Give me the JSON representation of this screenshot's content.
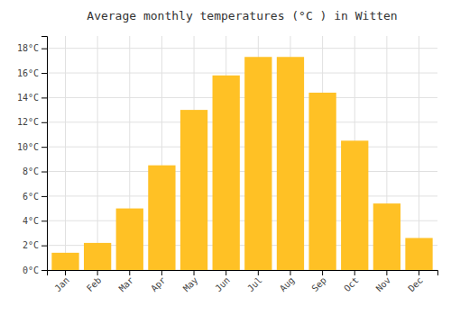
{
  "chart_data": {
    "type": "bar",
    "title": "Average monthly temperatures (°C ) in Witten",
    "categories": [
      "Jan",
      "Feb",
      "Mar",
      "Apr",
      "May",
      "Jun",
      "Jul",
      "Aug",
      "Sep",
      "Oct",
      "Nov",
      "Dec"
    ],
    "values": [
      1.4,
      2.2,
      5.0,
      8.5,
      13.0,
      15.8,
      17.3,
      17.3,
      14.4,
      10.5,
      5.4,
      2.6
    ],
    "color": "#FFC125",
    "ylim": [
      0,
      19
    ],
    "yticks": [
      {
        "value": 0,
        "label": "0°C"
      },
      {
        "value": 2,
        "label": "2°C"
      },
      {
        "value": 4,
        "label": "4°C"
      },
      {
        "value": 6,
        "label": "6°C"
      },
      {
        "value": 8,
        "label": "8°C"
      },
      {
        "value": 10,
        "label": "10°C"
      },
      {
        "value": 12,
        "label": "12°C"
      },
      {
        "value": 14,
        "label": "14°C"
      },
      {
        "value": 16,
        "label": "16°C"
      },
      {
        "value": 18,
        "label": "18°C"
      }
    ],
    "grid": true
  }
}
